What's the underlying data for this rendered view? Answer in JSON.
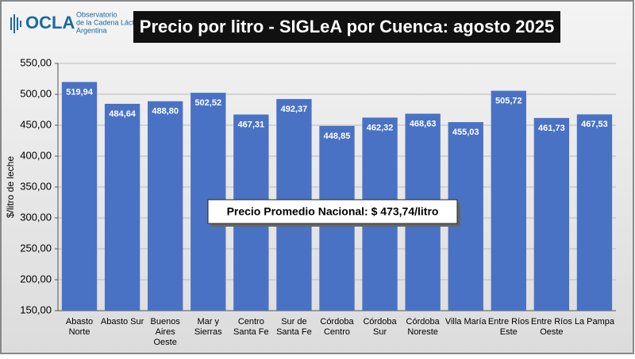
{
  "chart_data": {
    "type": "bar",
    "title": "Precio por litro - SIGLeA por Cuenca: agosto 2025",
    "logo": {
      "name": "OCLA",
      "lines": [
        "Observatorio",
        "de la Cadena Láctea",
        "Argentina"
      ]
    },
    "y_label": "$/litro de leche",
    "annotation": "Precio Promedio Nacional: $ 473,74/litro",
    "categories": [
      "Abasto\nNorte",
      "Abasto Sur",
      "Buenos\nAires\nOeste",
      "Mar y\nSierras",
      "Centro\nSanta Fe",
      "Sur de\nSanta Fe",
      "Córdoba\nCentro",
      "Córdoba\nSur",
      "Córdoba\nNoreste",
      "Villa María",
      "Entre Ríos\nEste",
      "Entre Ríos\nOeste",
      "La Pampa"
    ],
    "values": [
      519.94,
      484.64,
      488.8,
      502.52,
      467.31,
      492.37,
      448.85,
      462.32,
      468.63,
      455.03,
      505.72,
      461.73,
      467.53
    ],
    "value_labels": [
      "519,94",
      "484,64",
      "488,80",
      "502,52",
      "467,31",
      "492,37",
      "448,85",
      "462,32",
      "468,63",
      "455,03",
      "505,72",
      "461,73",
      "467,53"
    ],
    "color": "#4a72c4",
    "ylim": [
      150,
      550
    ],
    "yticks": [
      {
        "value": 150,
        "label": "150,00"
      },
      {
        "value": 200,
        "label": "200,00"
      },
      {
        "value": 250,
        "label": "250,00"
      },
      {
        "value": 300,
        "label": "300,00"
      },
      {
        "value": 350,
        "label": "350,00"
      },
      {
        "value": 400,
        "label": "400,00"
      },
      {
        "value": 450,
        "label": "450,00"
      },
      {
        "value": 500,
        "label": "500,00"
      },
      {
        "value": 550,
        "label": "550,00"
      }
    ],
    "grid": true
  }
}
